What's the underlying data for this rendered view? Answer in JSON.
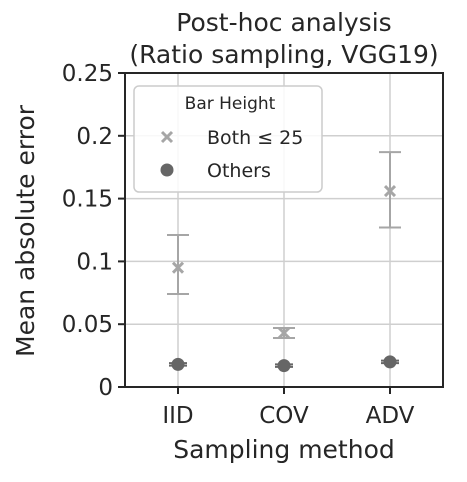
{
  "chart_data": {
    "type": "scatter",
    "title_lines": [
      "Post-hoc analysis",
      "(Ratio sampling, VGG19)"
    ],
    "xlabel": "Sampling method",
    "ylabel": "Mean absolute error",
    "categories": [
      "IID",
      "COV",
      "ADV"
    ],
    "ylim": [
      0,
      0.25
    ],
    "yticks": [
      0,
      0.05,
      0.1,
      0.15,
      0.2,
      0.25
    ],
    "ytick_labels": [
      "0",
      "0.05",
      "0.1",
      "0.15",
      "0.2",
      "0.25"
    ],
    "grid": true,
    "legend": {
      "title": "Bar Height",
      "placement": "upper-left"
    },
    "series": [
      {
        "name": "Both ≤ 25",
        "marker": "x",
        "color": "#a6a6a6",
        "values": [
          0.095,
          0.043,
          0.156
        ],
        "err_low": [
          0.074,
          0.039,
          0.127
        ],
        "err_high": [
          0.121,
          0.047,
          0.187
        ]
      },
      {
        "name": "Others",
        "marker": "circle",
        "color": "#666666",
        "values": [
          0.018,
          0.017,
          0.02
        ],
        "err_low": [
          0.017,
          0.016,
          0.019
        ],
        "err_high": [
          0.019,
          0.018,
          0.021
        ]
      }
    ]
  }
}
